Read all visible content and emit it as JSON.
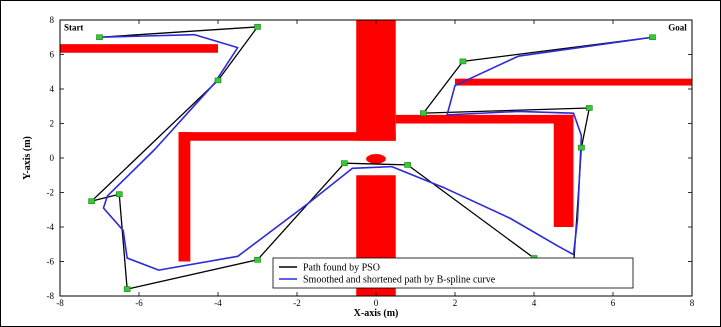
{
  "chart_data": {
    "type": "line",
    "xlabel": "X-axis (m)",
    "ylabel": "Y-axis (m)",
    "xlim": [
      -8,
      8
    ],
    "ylim": [
      -8,
      8
    ],
    "xticks": [
      -8,
      -6,
      -4,
      -2,
      0,
      2,
      4,
      6,
      8
    ],
    "yticks": [
      -8,
      -6,
      -4,
      -2,
      0,
      2,
      4,
      6,
      8
    ],
    "grid": false,
    "legend_position": "bottom-right",
    "annotations": [
      {
        "text": "Start",
        "x": -7.9,
        "y": 7.4
      },
      {
        "text": "Goal",
        "x": 7.4,
        "y": 7.4
      }
    ],
    "obstacle_color": "#ff0000",
    "obstacles": [
      {
        "shape": "rect",
        "x0": -8.0,
        "x1": -4.0,
        "y0": 6.1,
        "y1": 6.6
      },
      {
        "shape": "rect",
        "x0": -0.5,
        "x1": 0.5,
        "y0": 1.0,
        "y1": 8.2
      },
      {
        "shape": "rect",
        "x0": -5.0,
        "x1": 0.5,
        "y0": 1.0,
        "y1": 1.5
      },
      {
        "shape": "rect",
        "x0": -5.0,
        "x1": -4.7,
        "y0": -6.0,
        "y1": 1.5
      },
      {
        "shape": "rect",
        "x0": 0.5,
        "x1": 5.0,
        "y0": 2.0,
        "y1": 2.5
      },
      {
        "shape": "rect",
        "x0": 4.5,
        "x1": 5.0,
        "y0": -4.0,
        "y1": 2.5
      },
      {
        "shape": "rect",
        "x0": 2.0,
        "x1": 8.0,
        "y0": 4.2,
        "y1": 4.6
      },
      {
        "shape": "rect",
        "x0": -0.5,
        "x1": 0.5,
        "y0": -8.2,
        "y1": -1.0
      },
      {
        "shape": "ellipse",
        "cx": 0.0,
        "cy": -0.05,
        "rx": 0.25,
        "ry": 0.28
      }
    ],
    "series": [
      {
        "name": "Path found by PSO",
        "color": "#000000",
        "marker_color": "#33cc33",
        "x": [
          -7.0,
          -3.0,
          -4.0,
          -7.2,
          -6.5,
          -6.3,
          -3.0,
          -0.8,
          0.8,
          4.0,
          5.0,
          5.2,
          5.4,
          1.2,
          2.2,
          7.0
        ],
        "y": [
          7.0,
          7.6,
          4.5,
          -2.5,
          -2.1,
          -7.6,
          -5.9,
          -0.3,
          -0.4,
          -5.8,
          -6.3,
          0.6,
          2.9,
          2.6,
          5.6,
          7.0
        ]
      },
      {
        "name": "Smoothed and shortened path by B-spline curve",
        "color": "#2b2bd8",
        "x": [
          -7.0,
          -4.6,
          -3.5,
          -4.1,
          -5.6,
          -6.8,
          -6.9,
          -6.4,
          -6.3,
          -5.5,
          -3.5,
          -1.7,
          -0.6,
          0.4,
          1.7,
          3.4,
          4.6,
          5.0,
          5.1,
          5.2,
          5.0,
          3.6,
          1.8,
          2.0,
          3.6,
          7.0
        ],
        "y": [
          7.0,
          7.15,
          6.4,
          4.3,
          0.5,
          -2.2,
          -2.9,
          -4.2,
          -5.8,
          -6.5,
          -5.7,
          -2.6,
          -0.6,
          -0.5,
          -1.7,
          -3.5,
          -5.1,
          -5.6,
          -3.6,
          1.3,
          2.6,
          2.7,
          2.5,
          4.2,
          5.9,
          7.0
        ]
      }
    ]
  }
}
